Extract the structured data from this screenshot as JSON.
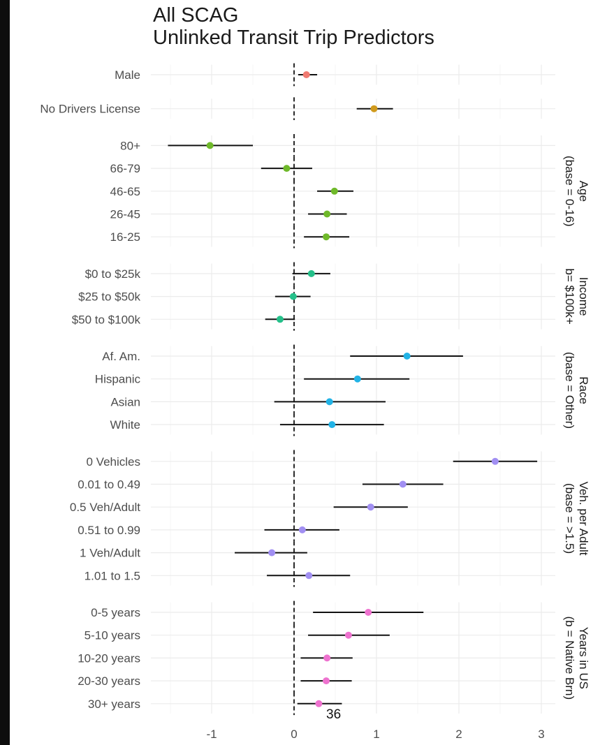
{
  "title_line1": "All SCAG",
  "title_line2": "Unlinked Transit Trip Predictors",
  "page_number": "36",
  "chart_data": {
    "type": "scatter",
    "subtype": "coefficient-plot",
    "reference_line_x": 0,
    "xlim": [
      -2.0,
      3.2
    ],
    "x_ticks": [
      -1,
      0,
      1,
      2,
      3
    ],
    "x_tick_labels": [
      "-1",
      "0",
      "1",
      "2",
      "3"
    ],
    "grid": true,
    "groups": [
      {
        "strip_lines": [],
        "color": "#f07b72",
        "terms": [
          {
            "label": "Male",
            "estimate": 0.15,
            "lo": 0.05,
            "hi": 0.28
          }
        ]
      },
      {
        "strip_lines": [],
        "color": "#d09a1c",
        "terms": [
          {
            "label": "No Drivers License",
            "estimate": 0.97,
            "lo": 0.76,
            "hi": 1.2
          }
        ]
      },
      {
        "strip_lines": [
          "Age",
          "(base = 0-16)"
        ],
        "color": "#6fb92a",
        "terms": [
          {
            "label": "80+",
            "estimate": -1.02,
            "lo": -1.53,
            "hi": -0.5
          },
          {
            "label": "66-79",
            "estimate": -0.09,
            "lo": -0.4,
            "hi": 0.22
          },
          {
            "label": "46-65",
            "estimate": 0.49,
            "lo": 0.28,
            "hi": 0.72
          },
          {
            "label": "26-45",
            "estimate": 0.4,
            "lo": 0.17,
            "hi": 0.64
          },
          {
            "label": "16-25",
            "estimate": 0.39,
            "lo": 0.12,
            "hi": 0.67
          }
        ]
      },
      {
        "strip_lines": [
          "Income",
          "b= $100k+"
        ],
        "color": "#25c08a",
        "terms": [
          {
            "label": "$0 to $25k",
            "estimate": 0.21,
            "lo": -0.02,
            "hi": 0.44
          },
          {
            "label": "$25 to $50k",
            "estimate": -0.01,
            "lo": -0.23,
            "hi": 0.2
          },
          {
            "label": "$50 to $100k",
            "estimate": -0.17,
            "lo": -0.35,
            "hi": 0.01
          }
        ]
      },
      {
        "strip_lines": [
          "Race",
          "(base = Other)"
        ],
        "color": "#22b3e6",
        "terms": [
          {
            "label": "Af. Am.",
            "estimate": 1.37,
            "lo": 0.68,
            "hi": 2.05
          },
          {
            "label": "Hispanic",
            "estimate": 0.77,
            "lo": 0.12,
            "hi": 1.4
          },
          {
            "label": "Asian",
            "estimate": 0.43,
            "lo": -0.24,
            "hi": 1.11
          },
          {
            "label": "White",
            "estimate": 0.46,
            "lo": -0.17,
            "hi": 1.09
          }
        ]
      },
      {
        "strip_lines": [
          "Veh. per Adult",
          "(base = >1.5)"
        ],
        "color": "#a18ff2",
        "terms": [
          {
            "label": "0 Vehicles",
            "estimate": 2.44,
            "lo": 1.93,
            "hi": 2.95
          },
          {
            "label": "0.01 to 0.49",
            "estimate": 1.32,
            "lo": 0.83,
            "hi": 1.81
          },
          {
            "label": "0.5 Veh/Adult",
            "estimate": 0.93,
            "lo": 0.48,
            "hi": 1.38
          },
          {
            "label": "0.51 to 0.99",
            "estimate": 0.1,
            "lo": -0.36,
            "hi": 0.55
          },
          {
            "label": "1 Veh/Adult",
            "estimate": -0.27,
            "lo": -0.72,
            "hi": 0.16
          },
          {
            "label": "1.01 to 1.5",
            "estimate": 0.18,
            "lo": -0.33,
            "hi": 0.68
          }
        ]
      },
      {
        "strip_lines": [
          "Years in US",
          "(b = Native Brn)"
        ],
        "color": "#ee72cf",
        "terms": [
          {
            "label": "0-5 years",
            "estimate": 0.9,
            "lo": 0.23,
            "hi": 1.57
          },
          {
            "label": "5-10 years",
            "estimate": 0.66,
            "lo": 0.17,
            "hi": 1.16
          },
          {
            "label": "10-20 years",
            "estimate": 0.4,
            "lo": 0.08,
            "hi": 0.71
          },
          {
            "label": "20-30 years",
            "estimate": 0.39,
            "lo": 0.08,
            "hi": 0.7
          },
          {
            "label": "30+ years",
            "estimate": 0.3,
            "lo": 0.04,
            "hi": 0.58
          }
        ]
      }
    ]
  }
}
